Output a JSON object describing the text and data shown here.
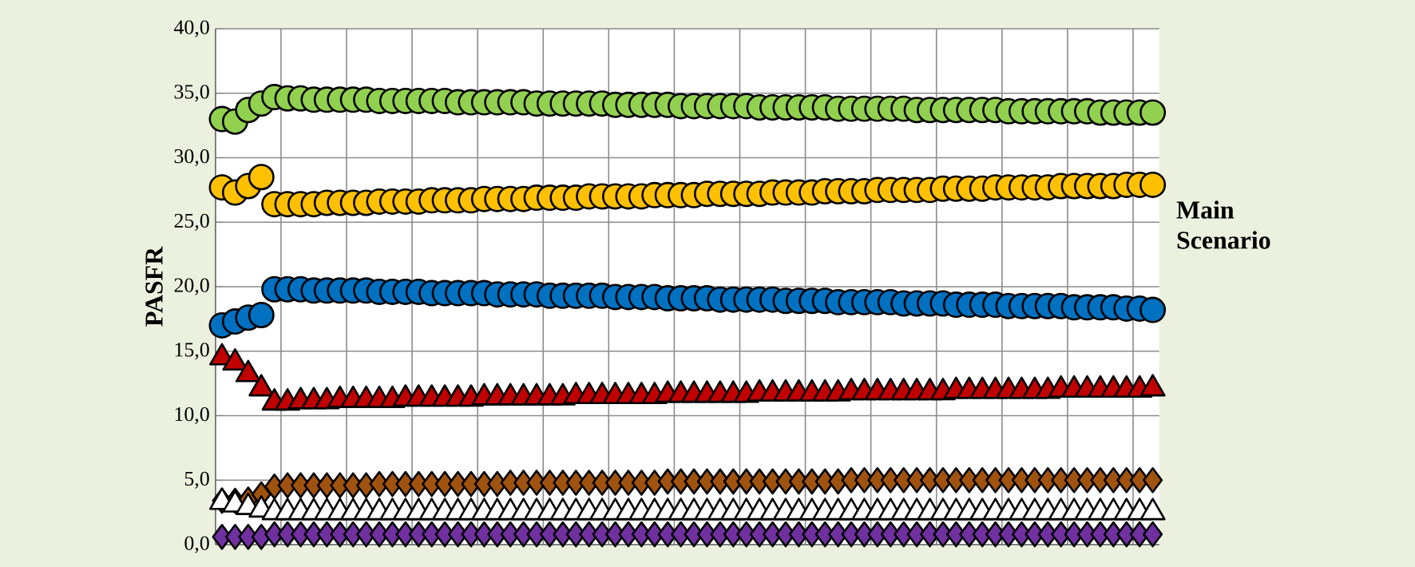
{
  "chart_data": {
    "type": "scatter",
    "ylabel": "PASFR",
    "annotations": [
      "Main Scenario"
    ],
    "categories": [
      null,
      null,
      null,
      null,
      null,
      null,
      null,
      null,
      null,
      null,
      null,
      null,
      null,
      null,
      null,
      null,
      null,
      null,
      null,
      null,
      null,
      null,
      null,
      null,
      null,
      null,
      null,
      null,
      null,
      null,
      null,
      null,
      null,
      null,
      null,
      null,
      null,
      null,
      null,
      null,
      null,
      null,
      null,
      null,
      null,
      null,
      null,
      null,
      null,
      null,
      null,
      null,
      null,
      null,
      null,
      null,
      null,
      null,
      null,
      null,
      null,
      null,
      null,
      null,
      null,
      null,
      null,
      null,
      null,
      null,
      null,
      null
    ],
    "ylim": [
      0,
      40
    ],
    "yticks": [
      {
        "value": 0,
        "label": "0,0"
      },
      {
        "value": 5,
        "label": "5,0"
      },
      {
        "value": 10,
        "label": "10,0"
      },
      {
        "value": 15,
        "label": "15,0"
      },
      {
        "value": 20,
        "label": "20,0"
      },
      {
        "value": 25,
        "label": "25,0"
      },
      {
        "value": 30,
        "label": "30,0"
      },
      {
        "value": 35,
        "label": "35,0"
      },
      {
        "value": 40,
        "label": "40,0"
      }
    ],
    "grid": true,
    "tick_labels": "y",
    "series": [
      {
        "color": "#92d050",
        "marker": "circle",
        "values": [
          33.0,
          32.8,
          33.7,
          34.2,
          34.7,
          34.6,
          34.6,
          34.5,
          34.5,
          34.5,
          34.5,
          34.5,
          34.4,
          34.4,
          34.4,
          34.4,
          34.4,
          34.4,
          34.3,
          34.3,
          34.3,
          34.3,
          34.3,
          34.3,
          34.2,
          34.2,
          34.2,
          34.2,
          34.2,
          34.2,
          34.1,
          34.1,
          34.1,
          34.1,
          34.1,
          34.0,
          34.0,
          34.0,
          34.0,
          34.0,
          34.0,
          33.9,
          33.9,
          33.9,
          33.9,
          33.9,
          33.9,
          33.8,
          33.8,
          33.8,
          33.8,
          33.8,
          33.8,
          33.7,
          33.7,
          33.7,
          33.7,
          33.7,
          33.7,
          33.7,
          33.6,
          33.6,
          33.6,
          33.6,
          33.6,
          33.6,
          33.6,
          33.5,
          33.5,
          33.5,
          33.5,
          33.5
        ]
      },
      {
        "color": "#ffc000",
        "marker": "circle",
        "values": [
          27.7,
          27.3,
          27.8,
          28.5,
          26.4,
          26.4,
          26.4,
          26.4,
          26.5,
          26.5,
          26.5,
          26.5,
          26.6,
          26.6,
          26.6,
          26.6,
          26.7,
          26.7,
          26.7,
          26.7,
          26.8,
          26.8,
          26.8,
          26.8,
          26.9,
          26.9,
          26.9,
          26.9,
          27.0,
          27.0,
          27.0,
          27.0,
          27.0,
          27.1,
          27.1,
          27.1,
          27.1,
          27.2,
          27.2,
          27.2,
          27.2,
          27.2,
          27.3,
          27.3,
          27.3,
          27.3,
          27.4,
          27.4,
          27.4,
          27.4,
          27.5,
          27.5,
          27.5,
          27.5,
          27.5,
          27.6,
          27.6,
          27.6,
          27.6,
          27.7,
          27.7,
          27.7,
          27.7,
          27.7,
          27.8,
          27.8,
          27.8,
          27.8,
          27.8,
          27.9,
          27.9,
          27.9
        ]
      },
      {
        "color": "#0070c0",
        "marker": "circle",
        "values": [
          17.0,
          17.3,
          17.6,
          17.8,
          19.8,
          19.8,
          19.8,
          19.7,
          19.7,
          19.7,
          19.7,
          19.7,
          19.6,
          19.6,
          19.6,
          19.6,
          19.5,
          19.5,
          19.5,
          19.5,
          19.5,
          19.4,
          19.4,
          19.4,
          19.4,
          19.3,
          19.3,
          19.3,
          19.3,
          19.3,
          19.2,
          19.2,
          19.2,
          19.2,
          19.1,
          19.1,
          19.1,
          19.1,
          19.0,
          19.0,
          19.0,
          19.0,
          19.0,
          18.9,
          18.9,
          18.9,
          18.9,
          18.8,
          18.8,
          18.8,
          18.8,
          18.8,
          18.7,
          18.7,
          18.7,
          18.7,
          18.6,
          18.6,
          18.6,
          18.6,
          18.5,
          18.5,
          18.5,
          18.5,
          18.5,
          18.4,
          18.4,
          18.4,
          18.4,
          18.3,
          18.3,
          18.2
        ]
      },
      {
        "color": "#c00000",
        "marker": "triangle",
        "values": [
          14.5,
          14.1,
          13.2,
          12.1,
          11.0,
          11.0,
          11.1,
          11.1,
          11.1,
          11.2,
          11.2,
          11.2,
          11.2,
          11.2,
          11.3,
          11.3,
          11.3,
          11.3,
          11.3,
          11.3,
          11.4,
          11.4,
          11.4,
          11.4,
          11.4,
          11.4,
          11.4,
          11.5,
          11.5,
          11.5,
          11.5,
          11.5,
          11.5,
          11.5,
          11.6,
          11.6,
          11.6,
          11.6,
          11.6,
          11.6,
          11.6,
          11.7,
          11.7,
          11.7,
          11.7,
          11.7,
          11.7,
          11.7,
          11.8,
          11.8,
          11.8,
          11.8,
          11.8,
          11.8,
          11.8,
          11.8,
          11.9,
          11.9,
          11.9,
          11.9,
          11.9,
          11.9,
          11.9,
          11.9,
          12.0,
          12.0,
          12.0,
          12.0,
          12.0,
          12.0,
          12.0,
          12.1
        ]
      },
      {
        "color": "#a0520f",
        "marker": "diamond",
        "values": [
          3.4,
          3.4,
          3.5,
          3.9,
          4.5,
          4.6,
          4.6,
          4.6,
          4.6,
          4.6,
          4.6,
          4.6,
          4.7,
          4.7,
          4.7,
          4.7,
          4.7,
          4.7,
          4.7,
          4.7,
          4.7,
          4.7,
          4.8,
          4.8,
          4.8,
          4.8,
          4.8,
          4.8,
          4.8,
          4.8,
          4.8,
          4.8,
          4.8,
          4.8,
          4.9,
          4.9,
          4.9,
          4.9,
          4.9,
          4.9,
          4.9,
          4.9,
          4.9,
          4.9,
          4.9,
          4.9,
          4.9,
          4.9,
          5.0,
          5.0,
          5.0,
          5.0,
          5.0,
          5.0,
          5.0,
          5.0,
          5.0,
          5.0,
          5.0,
          5.0,
          5.0,
          5.0,
          5.0,
          5.0,
          5.0,
          5.0,
          5.0,
          5.0,
          5.0,
          5.0,
          5.0,
          5.0
        ]
      },
      {
        "color": "#ffffff",
        "marker": "triangle",
        "values": [
          3.3,
          3.1,
          2.9,
          2.7,
          2.5,
          2.5,
          2.5,
          2.5,
          2.5,
          2.5,
          2.5,
          2.5,
          2.5,
          2.5,
          2.5,
          2.5,
          2.5,
          2.5,
          2.5,
          2.5,
          2.5,
          2.5,
          2.5,
          2.5,
          2.5,
          2.5,
          2.5,
          2.5,
          2.5,
          2.5,
          2.5,
          2.5,
          2.5,
          2.5,
          2.5,
          2.5,
          2.5,
          2.5,
          2.5,
          2.5,
          2.5,
          2.5,
          2.5,
          2.5,
          2.5,
          2.5,
          2.5,
          2.5,
          2.5,
          2.5,
          2.5,
          2.5,
          2.5,
          2.5,
          2.5,
          2.5,
          2.5,
          2.5,
          2.5,
          2.5,
          2.5,
          2.5,
          2.5,
          2.5,
          2.5,
          2.5,
          2.5,
          2.5,
          2.5,
          2.5,
          2.5,
          2.5
        ]
      },
      {
        "color": "#7030a0",
        "marker": "diamond",
        "values": [
          0.6,
          0.6,
          0.6,
          0.6,
          0.8,
          0.8,
          0.8,
          0.8,
          0.8,
          0.8,
          0.8,
          0.8,
          0.8,
          0.8,
          0.8,
          0.8,
          0.8,
          0.8,
          0.8,
          0.8,
          0.8,
          0.8,
          0.8,
          0.8,
          0.8,
          0.8,
          0.8,
          0.8,
          0.8,
          0.8,
          0.8,
          0.8,
          0.8,
          0.8,
          0.8,
          0.8,
          0.8,
          0.8,
          0.8,
          0.8,
          0.8,
          0.8,
          0.8,
          0.8,
          0.8,
          0.8,
          0.8,
          0.8,
          0.8,
          0.8,
          0.8,
          0.8,
          0.8,
          0.8,
          0.8,
          0.8,
          0.8,
          0.8,
          0.8,
          0.8,
          0.8,
          0.8,
          0.8,
          0.8,
          0.8,
          0.8,
          0.8,
          0.8,
          0.8,
          0.8,
          0.8,
          0.8
        ]
      }
    ]
  }
}
